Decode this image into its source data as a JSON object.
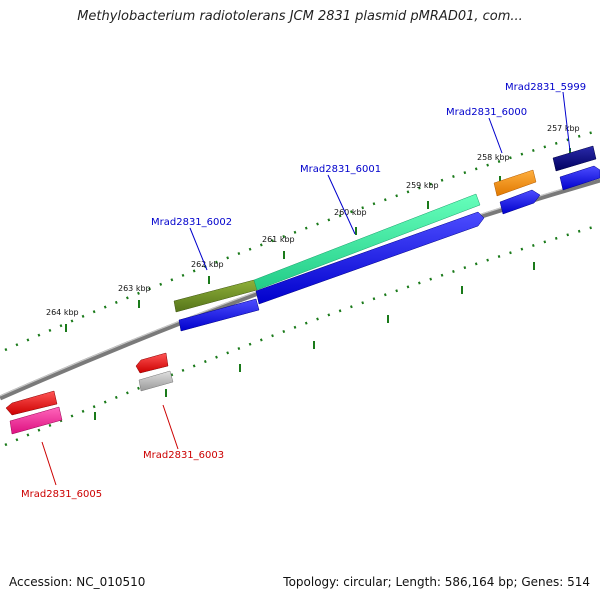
{
  "title": "Methylobacterium radiotolerans JCM 2831 plasmid pMRAD01, com...",
  "footer": {
    "accession": "Accession: NC_010510",
    "topology": "Topology: circular; Length: 586,164 bp; Genes: 514"
  },
  "scale_labels": [
    "257 kbp",
    "258 kbp",
    "259 kbp",
    "260 kbp",
    "261 kbp",
    "262 kbp",
    "263 kbp",
    "264 kbp"
  ],
  "genes": [
    {
      "label": "Mrad2831_5999",
      "strand": "forward",
      "color": "#0000aa"
    },
    {
      "label": "Mrad2831_6000",
      "strand": "forward",
      "color": "#0000aa"
    },
    {
      "label": "Mrad2831_6001",
      "strand": "forward",
      "color": "#0000aa"
    },
    {
      "label": "Mrad2831_6002",
      "strand": "forward",
      "color": "#0000aa"
    },
    {
      "label": "Mrad2831_6003",
      "strand": "reverse",
      "color": "#cc0000"
    },
    {
      "label": "Mrad2831_6005",
      "strand": "reverse",
      "color": "#cc0000"
    }
  ],
  "colors": {
    "backbone": "#7a7a7a",
    "tick": "#1a7a1a",
    "cds": "#0000ee",
    "rev_cds": "#ee0000",
    "feature_olive": "#6b8e23",
    "feature_aqua": "#33ee99",
    "feature_orange": "#ff8c00",
    "feature_navy": "#000080",
    "feature_pink": "#ff1493",
    "feature_grey": "#b0b0b0"
  }
}
